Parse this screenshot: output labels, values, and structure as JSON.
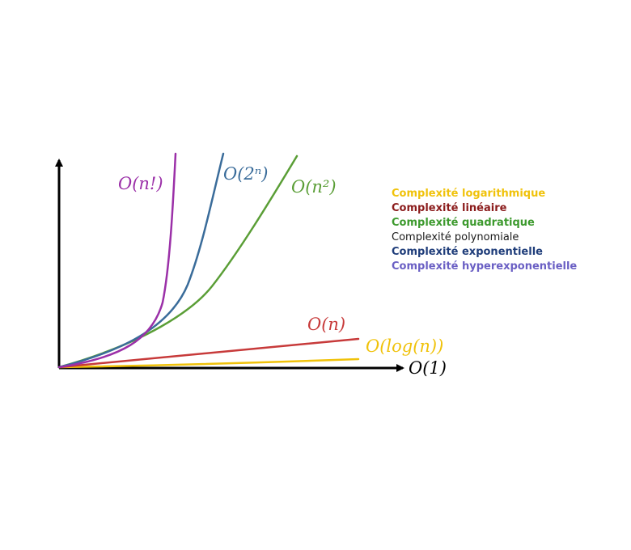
{
  "chart_data": {
    "type": "line",
    "title": "",
    "xlabel": "",
    "ylabel": "",
    "grid": false,
    "legend_position": "right",
    "series": [
      {
        "key": "factorial",
        "label": "O(n!)",
        "color": "#9b30a8"
      },
      {
        "key": "exponential",
        "label": "O(2ⁿ)",
        "color": "#3a6c9a"
      },
      {
        "key": "quadratic",
        "label": "O(n²)",
        "color": "#5a9e36"
      },
      {
        "key": "linear",
        "label": "O(n)",
        "color": "#c73a3a"
      },
      {
        "key": "logarithmic",
        "label": "O(log(n))",
        "color": "#f0c20a"
      },
      {
        "key": "constant",
        "label": "O(1)",
        "color": "#000000"
      }
    ],
    "legend": [
      {
        "text": "Complexité logarithmique",
        "color": "#f0c20a",
        "bold": true
      },
      {
        "text": "Complexité linéaire",
        "color": "#8b1c1c",
        "bold": true
      },
      {
        "text": "Complexité quadratique",
        "color": "#3d9a2e",
        "bold": true
      },
      {
        "text": "Complexité polynomiale",
        "color": "#1a1a1a",
        "bold": false
      },
      {
        "text": "Complexité exponentielle",
        "color": "#1f3d7a",
        "bold": true
      },
      {
        "text": "Complexité hyperexponentielle",
        "color": "#6a5fc4",
        "bold": true
      }
    ]
  }
}
